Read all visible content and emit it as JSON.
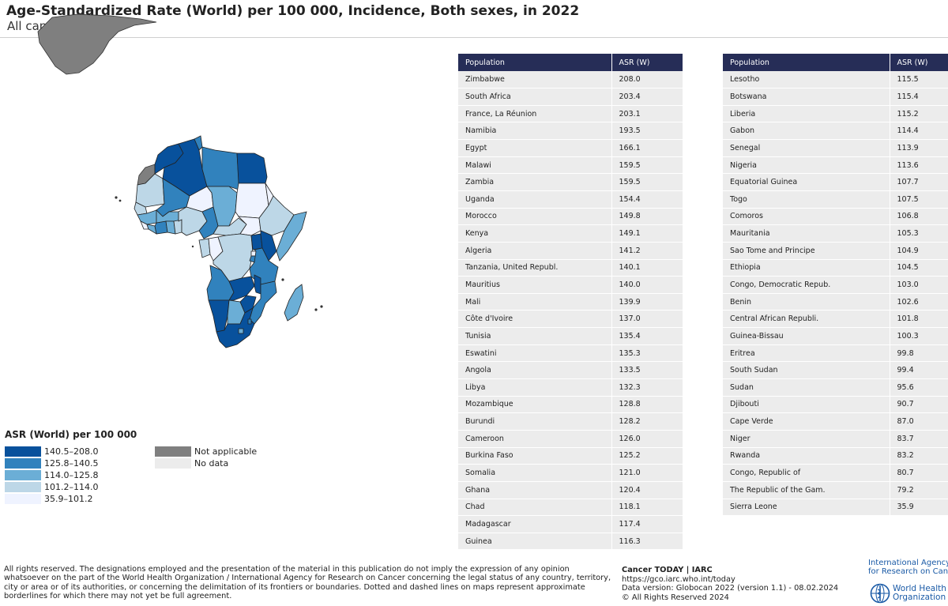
{
  "header": {
    "title": "Age-Standardized Rate (World) per 100 000, Incidence, Both sexes, in 2022",
    "subtitle": "All cancers"
  },
  "legend": {
    "title": "ASR (World) per 100 000",
    "classes": [
      {
        "label": "140.5–208.0",
        "color": "#08519c"
      },
      {
        "label": "125.8–140.5",
        "color": "#3182bd"
      },
      {
        "label": "114.0–125.8",
        "color": "#6baed6"
      },
      {
        "label": "101.2–114.0",
        "color": "#bdd7e7"
      },
      {
        "label": "35.9–101.2",
        "color": "#eff3ff"
      }
    ],
    "special": [
      {
        "label": "Not applicable",
        "color": "#7f7f7f"
      },
      {
        "label": "No data",
        "color": "#ececec"
      }
    ]
  },
  "table_left": {
    "col_population": "Population",
    "col_asr": "ASR (W)",
    "rows": [
      {
        "name": "Zimbabwe",
        "asr": "208.0"
      },
      {
        "name": "South Africa",
        "asr": "203.4"
      },
      {
        "name": "France, La Réunion",
        "asr": "203.1"
      },
      {
        "name": "Namibia",
        "asr": "193.5"
      },
      {
        "name": "Egypt",
        "asr": "166.1"
      },
      {
        "name": "Malawi",
        "asr": "159.5"
      },
      {
        "name": "Zambia",
        "asr": "159.5"
      },
      {
        "name": "Uganda",
        "asr": "154.4"
      },
      {
        "name": "Morocco",
        "asr": "149.8"
      },
      {
        "name": "Kenya",
        "asr": "149.1"
      },
      {
        "name": "Algeria",
        "asr": "141.2"
      },
      {
        "name": "Tanzania, United Republ.",
        "asr": "140.1"
      },
      {
        "name": "Mauritius",
        "asr": "140.0"
      },
      {
        "name": "Mali",
        "asr": "139.9"
      },
      {
        "name": "Côte d'Ivoire",
        "asr": "137.0"
      },
      {
        "name": "Tunisia",
        "asr": "135.4"
      },
      {
        "name": "Eswatini",
        "asr": "135.3"
      },
      {
        "name": "Angola",
        "asr": "133.5"
      },
      {
        "name": "Libya",
        "asr": "132.3"
      },
      {
        "name": "Mozambique",
        "asr": "128.8"
      },
      {
        "name": "Burundi",
        "asr": "128.2"
      },
      {
        "name": "Cameroon",
        "asr": "126.0"
      },
      {
        "name": "Burkina Faso",
        "asr": "125.2"
      },
      {
        "name": "Somalia",
        "asr": "121.0"
      },
      {
        "name": "Ghana",
        "asr": "120.4"
      },
      {
        "name": "Chad",
        "asr": "118.1"
      },
      {
        "name": "Madagascar",
        "asr": "117.4"
      },
      {
        "name": "Guinea",
        "asr": "116.3"
      }
    ]
  },
  "table_right": {
    "col_population": "Population",
    "col_asr": "ASR (W)",
    "rows": [
      {
        "name": "Lesotho",
        "asr": "115.5"
      },
      {
        "name": "Botswana",
        "asr": "115.4"
      },
      {
        "name": "Liberia",
        "asr": "115.2"
      },
      {
        "name": "Gabon",
        "asr": "114.4"
      },
      {
        "name": "Senegal",
        "asr": "113.9"
      },
      {
        "name": "Nigeria",
        "asr": "113.6"
      },
      {
        "name": "Equatorial Guinea",
        "asr": "107.7"
      },
      {
        "name": "Togo",
        "asr": "107.5"
      },
      {
        "name": "Comoros",
        "asr": "106.8"
      },
      {
        "name": "Mauritania",
        "asr": "105.3"
      },
      {
        "name": "Sao Tome and Principe",
        "asr": "104.9"
      },
      {
        "name": "Ethiopia",
        "asr": "104.5"
      },
      {
        "name": "Congo, Democratic Repub.",
        "asr": "103.0"
      },
      {
        "name": "Benin",
        "asr": "102.6"
      },
      {
        "name": "Central African Republi.",
        "asr": "101.8"
      },
      {
        "name": "Guinea-Bissau",
        "asr": "100.3"
      },
      {
        "name": "Eritrea",
        "asr": "99.8"
      },
      {
        "name": "South Sudan",
        "asr": "99.4"
      },
      {
        "name": "Sudan",
        "asr": "95.6"
      },
      {
        "name": "Djibouti",
        "asr": "90.7"
      },
      {
        "name": "Cape Verde",
        "asr": "87.0"
      },
      {
        "name": "Niger",
        "asr": "83.7"
      },
      {
        "name": "Rwanda",
        "asr": "83.2"
      },
      {
        "name": "Congo, Republic of",
        "asr": "80.7"
      },
      {
        "name": "The Republic of the Gam.",
        "asr": "79.2"
      },
      {
        "name": "Sierra Leone",
        "asr": "35.9"
      }
    ]
  },
  "footer": {
    "disclaimer": "All rights reserved. The designations employed and the presentation of the material in this publication do not imply the expression of any opinion whatsoever on the part of the World Health Organization / International Agency for Research on Cancer concerning the legal status of any country, territory, city or area or of its authorities, or concerning the delimitation of its frontiers or boundaries. Dotted and dashed lines on maps represent approximate borderlines for which there may not yet be full agreement.",
    "source_title": "Cancer TODAY | IARC",
    "source_url": "https://gco.iarc.who.int/today",
    "source_version": "Data version: Globocan 2022 (version 1.1) - 08.02.2024",
    "source_rights": "© All Rights Reserved 2024",
    "iarc_line1": "International Agency",
    "iarc_line2": "for Research on Cancer",
    "who_line1": "World Health",
    "who_line2": "Organization"
  }
}
